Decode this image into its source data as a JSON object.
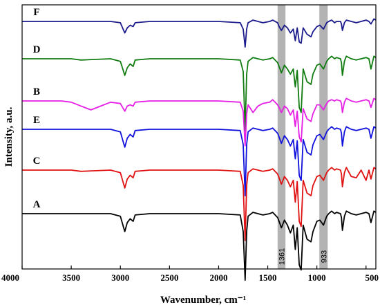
{
  "chart_data": {
    "type": "line",
    "xlabel": "Wavenumber, cm⁻¹",
    "ylabel": "Intensity, a.u.",
    "xlim": [
      4000,
      400
    ],
    "x_reversed": true,
    "x_ticks": [
      4000,
      3500,
      3000,
      2500,
      2000,
      1500,
      1000,
      500
    ],
    "y_ticks": [],
    "grid": false,
    "highlight_bands": [
      {
        "label": "1361",
        "from": 1400,
        "to": 1320
      },
      {
        "label": "933",
        "from": 975,
        "to": 890
      }
    ],
    "series": [
      {
        "name": "F",
        "color": "#1a1a8c",
        "x": [
          4000,
          3500,
          3400,
          3100,
          3000,
          2955,
          2930,
          2900,
          2870,
          2850,
          2700,
          2000,
          1780,
          1750,
          1730,
          1715,
          1700,
          1650,
          1600,
          1550,
          1480,
          1450,
          1400,
          1385,
          1361,
          1330,
          1300,
          1270,
          1240,
          1220,
          1200,
          1180,
          1160,
          1140,
          1100,
          1060,
          1040,
          1000,
          970,
          933,
          900,
          880,
          850,
          820,
          800,
          760,
          750,
          740,
          720,
          700,
          650,
          600,
          550,
          500,
          470,
          450,
          420,
          400
        ],
        "y": [
          0,
          0,
          0,
          0,
          -1,
          -9,
          -5,
          -3,
          -4,
          -1,
          0,
          0,
          -1,
          -6,
          -20,
          -6,
          -1,
          1,
          0,
          -1,
          0,
          1,
          -1,
          -4,
          -7,
          -3,
          -5,
          -9,
          -6,
          -15,
          -5,
          -16,
          -17,
          -5,
          -10,
          -12,
          -8,
          -4,
          -3,
          -6,
          -1,
          0,
          1,
          -1,
          0,
          0,
          -2,
          -7,
          -1,
          1,
          0,
          -1,
          0,
          1,
          0,
          -2,
          2,
          1
        ]
      },
      {
        "name": "D",
        "color": "#107c10",
        "x": [
          4000,
          3500,
          3400,
          3100,
          3000,
          2955,
          2930,
          2900,
          2870,
          2850,
          2700,
          2000,
          1780,
          1750,
          1730,
          1715,
          1700,
          1650,
          1600,
          1550,
          1480,
          1450,
          1400,
          1385,
          1361,
          1330,
          1300,
          1270,
          1240,
          1220,
          1200,
          1180,
          1160,
          1140,
          1100,
          1060,
          1040,
          1000,
          970,
          933,
          900,
          880,
          850,
          820,
          800,
          760,
          750,
          740,
          720,
          700,
          650,
          600,
          550,
          500,
          470,
          450,
          420,
          400
        ],
        "y": [
          0,
          0,
          -1,
          0,
          -2,
          -13,
          -7,
          -4,
          -6,
          -1,
          0,
          0,
          -1,
          -10,
          -56,
          -12,
          -2,
          1,
          0,
          -1,
          0,
          1,
          -3,
          -6,
          -11,
          -5,
          -8,
          -12,
          -8,
          -22,
          -9,
          -38,
          -42,
          -8,
          -18,
          -20,
          -12,
          -5,
          -4,
          -8,
          -2,
          0,
          2,
          0,
          1,
          0,
          -3,
          -13,
          -2,
          2,
          0,
          -1,
          0,
          1,
          0,
          -8,
          2,
          1
        ]
      },
      {
        "name": "B",
        "color": "#e61ee6",
        "x": [
          4000,
          3600,
          3500,
          3400,
          3300,
          3200,
          3100,
          3000,
          2955,
          2930,
          2900,
          2870,
          2850,
          2700,
          2000,
          1780,
          1750,
          1730,
          1715,
          1700,
          1650,
          1600,
          1550,
          1480,
          1450,
          1400,
          1385,
          1361,
          1330,
          1300,
          1270,
          1240,
          1220,
          1200,
          1180,
          1160,
          1140,
          1100,
          1060,
          1040,
          1000,
          970,
          933,
          900,
          880,
          850,
          820,
          800,
          760,
          750,
          740,
          720,
          700,
          650,
          600,
          550,
          500,
          470,
          450,
          420,
          400
        ],
        "y": [
          0,
          0,
          -1,
          -4,
          -7,
          -4,
          -1,
          -2,
          -8,
          -4,
          -3,
          -4,
          -1,
          0,
          0,
          -1,
          -8,
          -35,
          -10,
          -3,
          -9,
          -4,
          -2,
          -1,
          1,
          -3,
          -5,
          -9,
          -4,
          -6,
          -11,
          -7,
          -20,
          -8,
          -28,
          -32,
          -6,
          -14,
          -16,
          -10,
          -3,
          -3,
          -7,
          -2,
          0,
          1,
          0,
          1,
          0,
          -2,
          -9,
          -1,
          2,
          0,
          -1,
          0,
          1,
          0,
          -5,
          2,
          1
        ]
      },
      {
        "name": "E",
        "color": "#1111dd",
        "x": [
          4000,
          3500,
          3400,
          3100,
          3000,
          2955,
          2930,
          2900,
          2870,
          2850,
          2700,
          2000,
          1780,
          1750,
          1730,
          1715,
          1700,
          1650,
          1600,
          1550,
          1480,
          1450,
          1400,
          1385,
          1361,
          1330,
          1300,
          1270,
          1240,
          1220,
          1200,
          1180,
          1160,
          1140,
          1100,
          1060,
          1040,
          1000,
          970,
          933,
          900,
          880,
          850,
          820,
          800,
          760,
          750,
          740,
          720,
          700,
          650,
          600,
          550,
          500,
          470,
          450,
          420,
          400
        ],
        "y": [
          0,
          0,
          0,
          0,
          -2,
          -14,
          -7,
          -4,
          -6,
          -1,
          0,
          0,
          -1,
          -12,
          -52,
          -12,
          -2,
          1,
          0,
          -1,
          0,
          1,
          -3,
          -6,
          -11,
          -5,
          -8,
          -13,
          -8,
          -23,
          -9,
          -36,
          -40,
          -8,
          -18,
          -20,
          -12,
          -5,
          -4,
          -8,
          -2,
          0,
          2,
          0,
          1,
          0,
          -3,
          -13,
          -2,
          2,
          0,
          -1,
          0,
          1,
          0,
          -7,
          2,
          1
        ]
      },
      {
        "name": "C",
        "color": "#e01010",
        "x": [
          4000,
          3500,
          3400,
          3100,
          3000,
          2955,
          2930,
          2900,
          2870,
          2850,
          2700,
          2000,
          1780,
          1750,
          1730,
          1715,
          1700,
          1650,
          1600,
          1550,
          1480,
          1450,
          1400,
          1385,
          1361,
          1330,
          1300,
          1270,
          1240,
          1220,
          1200,
          1180,
          1160,
          1140,
          1100,
          1060,
          1040,
          1000,
          970,
          933,
          900,
          880,
          850,
          820,
          800,
          760,
          750,
          740,
          720,
          700,
          650,
          600,
          550,
          500,
          470,
          450,
          420,
          400
        ],
        "y": [
          0,
          0,
          -1,
          0,
          -2,
          -14,
          -7,
          -4,
          -6,
          -1,
          0,
          0,
          -1,
          -12,
          -55,
          -12,
          -2,
          1,
          0,
          -1,
          0,
          1,
          -3,
          -6,
          -11,
          -5,
          -8,
          -13,
          -8,
          -25,
          -9,
          -40,
          -44,
          -8,
          -18,
          -20,
          -12,
          -5,
          -4,
          -8,
          -2,
          0,
          2,
          0,
          1,
          0,
          -3,
          -13,
          -2,
          2,
          -5,
          -6,
          0,
          -8,
          0,
          -7,
          2,
          1
        ]
      },
      {
        "name": "A",
        "color": "#000000",
        "x": [
          4000,
          3500,
          3400,
          3100,
          3000,
          2955,
          2930,
          2900,
          2870,
          2850,
          2700,
          2000,
          1780,
          1750,
          1730,
          1715,
          1700,
          1650,
          1600,
          1550,
          1480,
          1450,
          1400,
          1385,
          1361,
          1330,
          1300,
          1270,
          1240,
          1220,
          1200,
          1180,
          1160,
          1140,
          1100,
          1060,
          1040,
          1000,
          970,
          933,
          900,
          880,
          850,
          820,
          800,
          760,
          750,
          740,
          720,
          700,
          650,
          600,
          550,
          500,
          470,
          450,
          420,
          400
        ],
        "y": [
          0,
          0,
          0,
          0,
          -2,
          -14,
          -7,
          -4,
          -6,
          -1,
          0,
          0,
          -1,
          -14,
          -52,
          -14,
          -2,
          1,
          0,
          -1,
          0,
          1,
          -3,
          -6,
          -11,
          -5,
          -9,
          -15,
          -9,
          -28,
          -11,
          -40,
          -44,
          -9,
          -20,
          -22,
          -14,
          -6,
          -5,
          -9,
          -2,
          0,
          2,
          0,
          1,
          0,
          -3,
          -13,
          -2,
          2,
          0,
          -1,
          0,
          1,
          0,
          -7,
          2,
          1
        ]
      }
    ]
  }
}
